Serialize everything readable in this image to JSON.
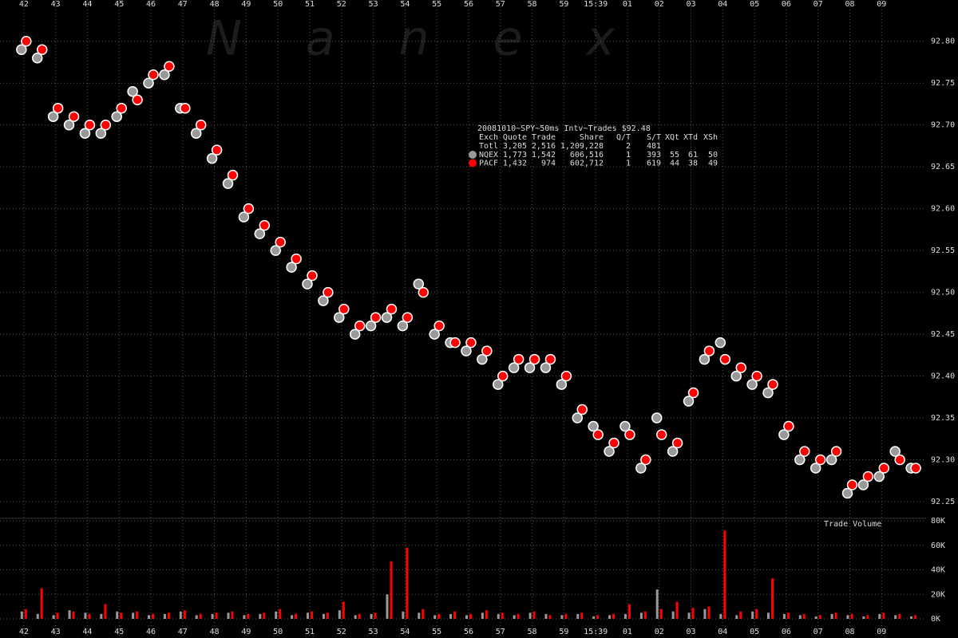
{
  "chart_data": [
    {
      "type": "scatter",
      "watermark": "Nanex",
      "x": [
        0,
        0.5,
        1,
        1.5,
        2,
        2.5,
        3,
        3.5,
        4,
        4.5,
        5,
        5.5,
        6,
        6.5,
        7,
        7.5,
        8,
        8.5,
        9,
        9.5,
        10,
        10.5,
        11,
        11.5,
        12,
        12.5,
        13,
        13.5,
        14,
        14.5,
        15,
        15.5,
        16,
        16.5,
        17,
        17.5,
        18,
        18.5,
        19,
        19.5,
        20,
        20.5,
        21,
        21.5,
        22,
        22.5,
        23,
        23.5,
        24,
        24.5,
        25,
        25.5,
        26,
        26.5,
        27,
        27.5,
        28
      ],
      "series": [
        {
          "name": "NQEX",
          "color": "#999999",
          "stats": [
            "1,773",
            "1,542",
            "606,516",
            "1",
            "393",
            "55",
            "61",
            "50"
          ],
          "values": [
            92.79,
            92.78,
            92.71,
            92.7,
            92.69,
            92.69,
            92.71,
            92.74,
            92.75,
            92.76,
            92.72,
            92.69,
            92.66,
            92.63,
            92.59,
            92.57,
            92.55,
            92.53,
            92.51,
            92.49,
            92.47,
            92.45,
            92.46,
            92.47,
            92.46,
            92.51,
            92.45,
            92.44,
            92.43,
            92.42,
            92.39,
            92.41,
            92.41,
            92.41,
            92.39,
            92.35,
            92.34,
            92.31,
            92.34,
            92.29,
            92.35,
            92.31,
            92.37,
            92.42,
            92.44,
            92.4,
            92.39,
            92.38,
            92.33,
            92.3,
            92.29,
            92.3,
            92.26,
            92.27,
            92.28,
            92.31,
            92.29
          ]
        },
        {
          "name": "PACF",
          "color": "#ff0000",
          "stats": [
            "1,432",
            "974",
            "602,712",
            "1",
            "619",
            "44",
            "38",
            "49"
          ],
          "values": [
            92.8,
            92.79,
            92.72,
            92.71,
            92.7,
            92.7,
            92.72,
            92.73,
            92.76,
            92.77,
            92.72,
            92.7,
            92.67,
            92.64,
            92.6,
            92.58,
            92.56,
            92.54,
            92.52,
            92.5,
            92.48,
            92.46,
            92.47,
            92.48,
            92.47,
            92.5,
            92.46,
            92.44,
            92.44,
            92.43,
            92.4,
            92.42,
            92.42,
            92.42,
            92.4,
            92.36,
            92.33,
            92.32,
            92.33,
            92.3,
            92.33,
            92.32,
            92.38,
            92.43,
            92.42,
            92.41,
            92.4,
            92.39,
            92.34,
            92.31,
            92.3,
            92.31,
            92.27,
            92.28,
            92.29,
            92.3,
            92.29
          ]
        }
      ],
      "xlim": [
        -0.75,
        28.4
      ],
      "xticks": [
        {
          "value": 0,
          "label": "42"
        },
        {
          "value": 1,
          "label": "43"
        },
        {
          "value": 2,
          "label": "44"
        },
        {
          "value": 3,
          "label": "45"
        },
        {
          "value": 4,
          "label": "46"
        },
        {
          "value": 5,
          "label": "47"
        },
        {
          "value": 6,
          "label": "48"
        },
        {
          "value": 7,
          "label": "49"
        },
        {
          "value": 8,
          "label": "50"
        },
        {
          "value": 9,
          "label": "51"
        },
        {
          "value": 10,
          "label": "52"
        },
        {
          "value": 11,
          "label": "53"
        },
        {
          "value": 12,
          "label": "54"
        },
        {
          "value": 13,
          "label": "55"
        },
        {
          "value": 14,
          "label": "56"
        },
        {
          "value": 15,
          "label": "57"
        },
        {
          "value": 16,
          "label": "58"
        },
        {
          "value": 17,
          "label": "59"
        },
        {
          "value": 18,
          "label": "15:39"
        },
        {
          "value": 19,
          "label": "01"
        },
        {
          "value": 20,
          "label": "02"
        },
        {
          "value": 21,
          "label": "03"
        },
        {
          "value": 22,
          "label": "04"
        },
        {
          "value": 23,
          "label": "05"
        },
        {
          "value": 24,
          "label": "06"
        },
        {
          "value": 25,
          "label": "07"
        },
        {
          "value": 26,
          "label": "08"
        },
        {
          "value": 27,
          "label": "09"
        }
      ],
      "ylim": [
        92.23,
        92.835
      ],
      "yticks": [
        92.25,
        {
          "value": 92.3,
          "label": "92.30"
        },
        92.35,
        {
          "value": 92.4,
          "label": "92.40"
        },
        92.45,
        {
          "value": 92.5,
          "label": "92.50"
        },
        92.55,
        {
          "value": 92.6,
          "label": "92.60"
        },
        92.65,
        {
          "value": 92.7,
          "label": "92.70"
        },
        92.75,
        {
          "value": 92.8,
          "label": "92.80"
        }
      ],
      "grid": true,
      "stats_title": "20081010~SPY~50ms Intv~Trades $92.48",
      "stats_header": [
        "Exch",
        "Quote",
        "Trade",
        "Share",
        "Q/T",
        "S/T",
        "XQt",
        "XTd",
        "XSh"
      ],
      "stats_total": {
        "label": "Totl",
        "cells": [
          "3,205",
          "2,516",
          "1,209,228",
          "2",
          "481"
        ]
      }
    },
    {
      "type": "bar",
      "title": "Trade Volume",
      "x": [
        0,
        0.5,
        1,
        1.5,
        2,
        2.5,
        3,
        3.5,
        4,
        4.5,
        5,
        5.5,
        6,
        6.5,
        7,
        7.5,
        8,
        8.5,
        9,
        9.5,
        10,
        10.5,
        11,
        11.5,
        12,
        12.5,
        13,
        13.5,
        14,
        14.5,
        15,
        15.5,
        16,
        16.5,
        17,
        17.5,
        18,
        18.5,
        19,
        19.5,
        20,
        20.5,
        21,
        21.5,
        22,
        22.5,
        23,
        23.5,
        24,
        24.5,
        25,
        25.5,
        26,
        26.5,
        27,
        27.5,
        28
      ],
      "series": [
        {
          "name": "NQEX",
          "color": "#999999",
          "values": [
            6000,
            4000,
            3000,
            7000,
            5000,
            4000,
            6000,
            5000,
            3000,
            4000,
            6000,
            3000,
            4000,
            5000,
            3000,
            4000,
            6000,
            3000,
            5000,
            4000,
            7000,
            3000,
            4000,
            20000,
            6000,
            5000,
            3000,
            4000,
            3000,
            5000,
            4000,
            3000,
            5000,
            4000,
            3000,
            4000,
            2000,
            3000,
            4000,
            5000,
            24000,
            6000,
            5000,
            8000,
            4000,
            3000,
            6000,
            5000,
            4000,
            3000,
            2000,
            4000,
            3000,
            2000,
            4000,
            3000,
            2000
          ]
        },
        {
          "name": "PACF",
          "color": "#ff0000",
          "values": [
            8000,
            25000,
            5000,
            6000,
            4000,
            12000,
            5000,
            6000,
            4000,
            5000,
            7000,
            4000,
            5000,
            6000,
            4000,
            5000,
            8000,
            4000,
            6000,
            5000,
            14000,
            4000,
            5000,
            47000,
            58000,
            8000,
            4000,
            6000,
            4000,
            7000,
            5000,
            4000,
            6000,
            3000,
            4000,
            5000,
            3000,
            4000,
            12000,
            6000,
            8000,
            14000,
            9000,
            10000,
            72000,
            6000,
            8000,
            33000,
            5000,
            4000,
            3000,
            5000,
            4000,
            3000,
            5000,
            4000,
            3000
          ]
        }
      ],
      "xlim": [
        -0.75,
        28.4
      ],
      "ylim": [
        0,
        82000
      ],
      "yticks": [
        {
          "value": 0,
          "label": "0K"
        },
        {
          "value": 20000,
          "label": "20K"
        },
        {
          "value": 40000,
          "label": "40K"
        },
        {
          "value": 60000,
          "label": "60K"
        },
        {
          "value": 80000,
          "label": "80K"
        }
      ],
      "grid": true
    }
  ]
}
